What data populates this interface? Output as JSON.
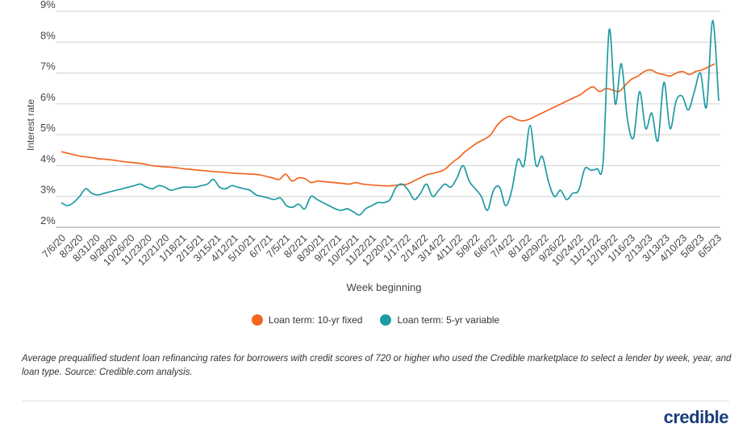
{
  "chart_data": {
    "type": "line",
    "xlabel": "Week beginning",
    "ylabel": "Interest rate",
    "ylim": [
      2,
      9
    ],
    "yticks": [
      "2%",
      "3%",
      "4%",
      "5%",
      "6%",
      "7%",
      "8%",
      "9%"
    ],
    "grid": true,
    "legend_position": "bottom",
    "x_tick_labels": [
      "7/6/20",
      "8/3/20",
      "8/31/20",
      "9/28/20",
      "10/26/20",
      "11/23/20",
      "12/21/20",
      "1/18/21",
      "2/15/21",
      "3/15/21",
      "4/12/21",
      "5/10/21",
      "6/7/21",
      "7/5/21",
      "8/2/21",
      "8/30/21",
      "9/27/21",
      "10/25/21",
      "11/22/21",
      "12/20/21",
      "1/17/22",
      "2/14/22",
      "3/14/22",
      "4/11/22",
      "5/9/22",
      "6/6/22",
      "7/4/22",
      "8/1/22",
      "8/29/22",
      "9/26/22",
      "10/24/22",
      "11/21/22",
      "12/19/22",
      "1/16/23",
      "2/13/23",
      "3/13/23",
      "4/10/23",
      "5/8/23",
      "6/5/23"
    ],
    "series": [
      {
        "name": "Loan term: 10-yr fixed",
        "color": "#f26522",
        "values": [
          4.45,
          4.4,
          4.35,
          4.3,
          4.28,
          4.25,
          4.22,
          4.2,
          4.18,
          4.15,
          4.12,
          4.1,
          4.08,
          4.05,
          4.0,
          3.98,
          3.96,
          3.95,
          3.93,
          3.9,
          3.88,
          3.86,
          3.84,
          3.82,
          3.8,
          3.79,
          3.77,
          3.75,
          3.74,
          3.73,
          3.72,
          3.7,
          3.65,
          3.6,
          3.55,
          3.72,
          3.5,
          3.6,
          3.58,
          3.45,
          3.5,
          3.48,
          3.46,
          3.44,
          3.42,
          3.4,
          3.45,
          3.4,
          3.38,
          3.36,
          3.35,
          3.34,
          3.36,
          3.38,
          3.4,
          3.5,
          3.6,
          3.7,
          3.75,
          3.8,
          3.9,
          4.1,
          4.25,
          4.45,
          4.6,
          4.75,
          4.85,
          5.0,
          5.3,
          5.5,
          5.6,
          5.5,
          5.45,
          5.5,
          5.6,
          5.7,
          5.8,
          5.9,
          6.0,
          6.1,
          6.2,
          6.3,
          6.45,
          6.55,
          6.4,
          6.5,
          6.45,
          6.4,
          6.6,
          6.8,
          6.9,
          7.05,
          7.1,
          7.0,
          6.95,
          6.9,
          7.0,
          7.05,
          6.95,
          7.05,
          7.1,
          7.2,
          7.3
        ],
        "x_start": 0,
        "x_step": 1
      },
      {
        "name": "Loan term: 5-yr variable",
        "color": "#1e9aa4",
        "values": [
          2.8,
          2.7,
          2.8,
          3.0,
          3.25,
          3.1,
          3.05,
          3.1,
          3.15,
          3.2,
          3.25,
          3.3,
          3.35,
          3.4,
          3.3,
          3.25,
          3.35,
          3.3,
          3.2,
          3.25,
          3.3,
          3.3,
          3.3,
          3.35,
          3.4,
          3.55,
          3.3,
          3.25,
          3.35,
          3.3,
          3.25,
          3.2,
          3.05,
          3.0,
          2.95,
          2.9,
          2.95,
          2.7,
          2.65,
          2.75,
          2.6,
          3.0,
          2.9,
          2.8,
          2.7,
          2.6,
          2.55,
          2.6,
          2.5,
          2.4,
          2.6,
          2.7,
          2.8,
          2.8,
          2.9,
          3.3,
          3.4,
          3.2,
          2.9,
          3.1,
          3.4,
          3.0,
          3.2,
          3.4,
          3.3,
          3.6,
          4.0,
          3.5,
          3.25,
          3.0,
          2.55,
          3.2,
          3.3,
          2.7,
          3.2,
          4.2,
          4.0,
          5.3,
          4.0,
          4.3,
          3.5,
          3.0,
          3.2,
          2.9,
          3.1,
          3.2,
          3.9,
          3.85,
          3.9,
          4.1,
          8.4,
          6.0,
          7.3,
          5.5,
          4.9,
          6.4,
          5.2,
          5.7,
          4.8,
          6.7,
          5.2,
          6.1,
          6.25,
          5.8,
          6.4,
          7.0,
          5.9,
          8.7,
          6.1
        ],
        "x_start": 0,
        "x_step": 0.95
      }
    ]
  },
  "legend": {
    "items": [
      {
        "label": "Loan term: 10-yr fixed",
        "color": "#f26522"
      },
      {
        "label": "Loan term: 5-yr variable",
        "color": "#1e9aa4"
      }
    ]
  },
  "caption": "Average prequalified student loan refinancing rates for borrowers with credit scores of 720 or higher who used the Credible marketplace to select a lender by week, year, and loan type. Source: Credible.com analysis.",
  "logo": "credible"
}
